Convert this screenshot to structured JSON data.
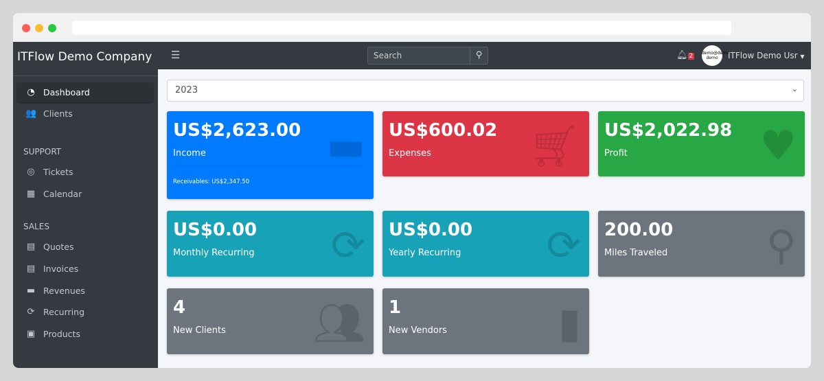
{
  "sidebar": {
    "brand": "ITFlow Demo Company",
    "items": [
      {
        "label": "Dashboard",
        "icon": "tachometer-icon"
      },
      {
        "label": "Clients",
        "icon": "users-icon"
      }
    ],
    "support_header": "SUPPORT",
    "support": [
      {
        "label": "Tickets",
        "icon": "life-ring-icon"
      },
      {
        "label": "Calendar",
        "icon": "calendar-icon"
      }
    ],
    "sales_header": "SALES",
    "sales": [
      {
        "label": "Quotes",
        "icon": "file-icon"
      },
      {
        "label": "Invoices",
        "icon": "invoice-icon"
      },
      {
        "label": "Revenues",
        "icon": "credit-card-icon"
      },
      {
        "label": "Recurring",
        "icon": "sync-icon"
      },
      {
        "label": "Products",
        "icon": "box-icon"
      }
    ]
  },
  "topnav": {
    "search_placeholder": "Search",
    "notifications": "2",
    "avatar_text": "demo@demo demo",
    "user": "ITFlow Demo Usr"
  },
  "year": "2023",
  "cards": [
    {
      "value": "US$2,623.00",
      "label": "Income",
      "footer": "Receivables: US$2,347.50",
      "color": "#007bff",
      "icon": "credit-card-icon"
    },
    {
      "value": "US$600.02",
      "label": "Expenses",
      "color": "#dc3545",
      "icon": "shopping-cart-icon"
    },
    {
      "value": "US$2,022.98",
      "label": "Profit",
      "color": "#28a745",
      "icon": "heart-icon"
    },
    {
      "value": "US$0.00",
      "label": "Monthly Recurring",
      "color": "#17a2b8",
      "icon": "sync-icon"
    },
    {
      "value": "US$0.00",
      "label": "Yearly Recurring",
      "color": "#17a2b8",
      "icon": "sync-icon"
    },
    {
      "value": "200.00",
      "label": "Miles Traveled",
      "color": "#6c757d",
      "icon": "route-icon"
    },
    {
      "value": "4",
      "label": "New Clients",
      "color": "#6c757d",
      "icon": "users-icon"
    },
    {
      "value": "1",
      "label": "New Vendors",
      "color": "#6c757d",
      "icon": "building-icon"
    }
  ]
}
